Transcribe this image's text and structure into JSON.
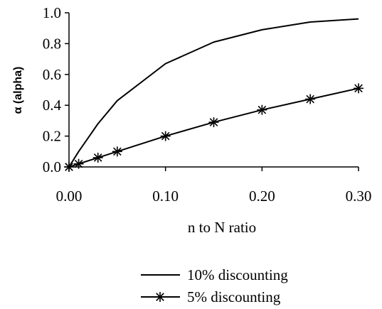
{
  "chart_data": {
    "type": "line",
    "title": "",
    "xlabel": "n to N ratio",
    "ylabel": "α (alpha)",
    "xlim": [
      0,
      0.3
    ],
    "ylim": [
      0,
      1.0
    ],
    "x_ticks": [
      "0.00",
      "0.10",
      "0.20",
      "0.30"
    ],
    "x_tick_values": [
      0,
      0.1,
      0.2,
      0.3
    ],
    "y_ticks": [
      "0.0",
      "0.2",
      "0.4",
      "0.6",
      "0.8",
      "1.0"
    ],
    "y_tick_values": [
      0,
      0.2,
      0.4,
      0.6,
      0.8,
      1.0
    ],
    "grid": false,
    "legend_position": "bottom",
    "series": [
      {
        "name": "10% discounting",
        "marker": "none",
        "color": "#000000",
        "x": [
          0,
          0.01,
          0.03,
          0.05,
          0.1,
          0.15,
          0.2,
          0.25,
          0.3
        ],
        "y": [
          0,
          0.1,
          0.28,
          0.43,
          0.67,
          0.81,
          0.89,
          0.94,
          0.96
        ]
      },
      {
        "name": "5% discounting",
        "marker": "asterisk",
        "color": "#000000",
        "x": [
          0,
          0.01,
          0.03,
          0.05,
          0.1,
          0.15,
          0.2,
          0.25,
          0.3
        ],
        "y": [
          0,
          0.02,
          0.06,
          0.1,
          0.2,
          0.29,
          0.37,
          0.44,
          0.51
        ]
      }
    ]
  }
}
